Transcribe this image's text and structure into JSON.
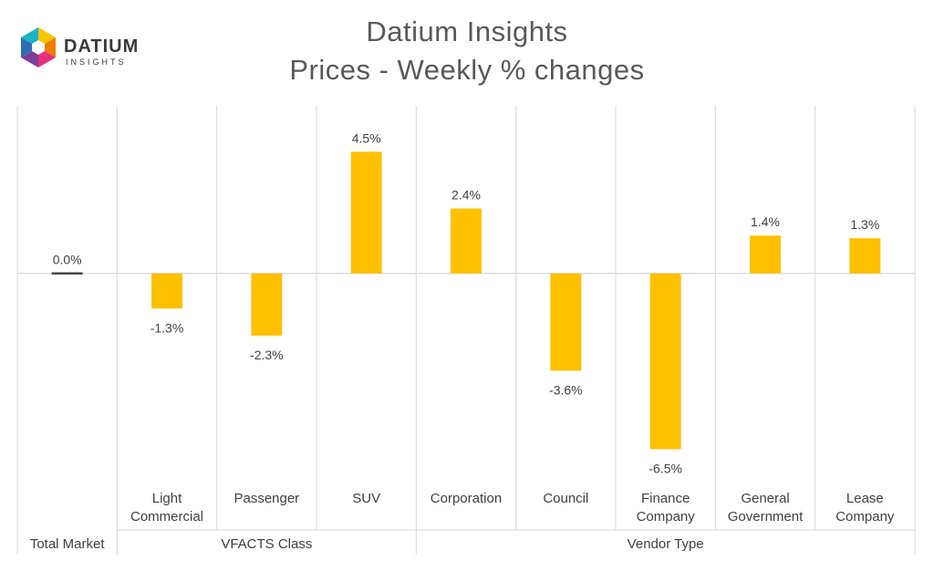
{
  "logo": {
    "brand": "DATIUM",
    "sub": "INSIGHTS",
    "colors": [
      "#f7c600",
      "#ef7d00",
      "#e5307d",
      "#7b3f98",
      "#2f6db5",
      "#1bb3c8"
    ]
  },
  "title": {
    "line1": "Datium Insights",
    "line2": "Prices - Weekly % changes"
  },
  "chart_data": {
    "type": "bar",
    "title": "Datium Insights Prices - Weekly % changes",
    "categories": [
      [
        "Total Market"
      ],
      [
        "Light",
        "Commercial"
      ],
      [
        "Passenger"
      ],
      [
        "SUV"
      ],
      [
        "Corporation"
      ],
      [
        "Council"
      ],
      [
        "Finance",
        "Company"
      ],
      [
        "General",
        "Government"
      ],
      [
        "Lease",
        "Company"
      ]
    ],
    "values": [
      0.0,
      -1.3,
      -2.3,
      4.5,
      2.4,
      -3.6,
      -6.5,
      1.4,
      1.3
    ],
    "value_labels": [
      "0.0%",
      "-1.3%",
      "-2.3%",
      "4.5%",
      "2.4%",
      "-3.6%",
      "-6.5%",
      "1.4%",
      "1.3%"
    ],
    "groups": [
      {
        "label": "",
        "start": 0,
        "end": 0
      },
      {
        "label": "VFACTS Class",
        "start": 1,
        "end": 3
      },
      {
        "label": "Vendor Type",
        "start": 4,
        "end": 8
      }
    ],
    "total_label": "Total Market",
    "ylim": [
      -7.5,
      6.2
    ],
    "bar_color": "#ffc000",
    "zero_bar_color": "#404040",
    "grid": false,
    "legend": "none"
  }
}
